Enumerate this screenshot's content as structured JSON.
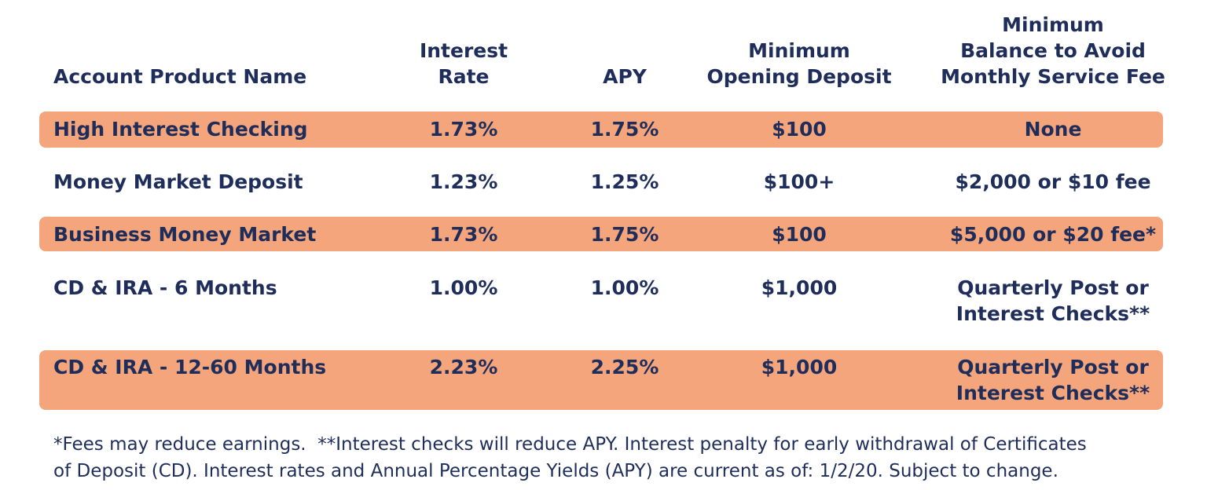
{
  "table": {
    "headers": [
      [
        "Account Product Name"
      ],
      [
        "Interest",
        "Rate"
      ],
      [
        "APY"
      ],
      [
        "Minimum",
        "Opening Deposit"
      ],
      [
        "Minimum",
        "Balance to Avoid",
        "Monthly Service Fee"
      ]
    ],
    "rows": [
      [
        [
          "High Interest Checking"
        ],
        [
          "1.73%"
        ],
        [
          "1.75%"
        ],
        [
          "$100"
        ],
        [
          "None"
        ]
      ],
      [
        [
          "Money Market Deposit"
        ],
        [
          "1.23%"
        ],
        [
          "1.25%"
        ],
        [
          "$100+"
        ],
        [
          "$2,000 or $10 fee"
        ]
      ],
      [
        [
          "Business Money Market"
        ],
        [
          "1.73%"
        ],
        [
          "1.75%"
        ],
        [
          "$100"
        ],
        [
          "$5,000 or $20 fee*"
        ]
      ],
      [
        [
          "CD & IRA - 6 Months"
        ],
        [
          "1.00%"
        ],
        [
          "1.00%"
        ],
        [
          "$1,000"
        ],
        [
          "Quarterly Post or",
          "Interest Checks**"
        ]
      ],
      [
        [
          "CD & IRA - 12-60 Months"
        ],
        [
          "2.23%"
        ],
        [
          "2.25%"
        ],
        [
          "$1,000"
        ],
        [
          "Quarterly Post or",
          "Interest Checks**"
        ]
      ]
    ]
  },
  "footnote": [
    "*Fees may reduce earnings.  **Interest checks will reduce APY. Interest penalty for early withdrawal of Certificates",
    "of Deposit (CD). Interest rates and Annual Percentage Yields (APY) are current as of: 1/2/20. Subject to change."
  ]
}
